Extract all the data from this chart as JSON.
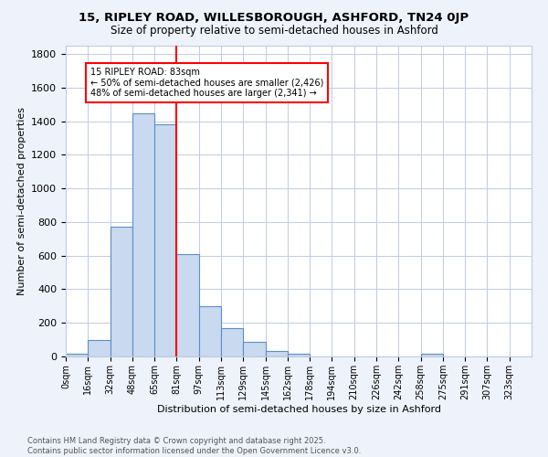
{
  "title1": "15, RIPLEY ROAD, WILLESBOROUGH, ASHFORD, TN24 0JP",
  "title2": "Size of property relative to semi-detached houses in Ashford",
  "xlabel": "Distribution of semi-detached houses by size in Ashford",
  "ylabel": "Number of semi-detached properties",
  "bar_labels": [
    "0sqm",
    "16sqm",
    "32sqm",
    "48sqm",
    "65sqm",
    "81sqm",
    "97sqm",
    "113sqm",
    "129sqm",
    "145sqm",
    "162sqm",
    "178sqm",
    "194sqm",
    "210sqm",
    "226sqm",
    "242sqm",
    "258sqm",
    "275sqm",
    "291sqm",
    "307sqm",
    "323sqm"
  ],
  "bar_heights": [
    15,
    100,
    770,
    1450,
    1380,
    610,
    300,
    170,
    85,
    30,
    18,
    0,
    0,
    0,
    0,
    0,
    15,
    0,
    0,
    0,
    0
  ],
  "bar_color": "#c9d9f0",
  "bar_edge_color": "#5b8fc9",
  "property_line_label": "15 RIPLEY ROAD: 83sqm",
  "annotation_line1": "← 50% of semi-detached houses are smaller (2,426)",
  "annotation_line2": "48% of semi-detached houses are larger (2,341) →",
  "annotation_box_color": "white",
  "annotation_box_edge": "red",
  "vline_color": "red",
  "ylim": [
    0,
    1850
  ],
  "footnote1": "Contains HM Land Registry data © Crown copyright and database right 2025.",
  "footnote2": "Contains public sector information licensed under the Open Government Licence v3.0.",
  "bg_color": "#eef2fb",
  "plot_bg_color": "white",
  "grid_color": "#c0cce0"
}
